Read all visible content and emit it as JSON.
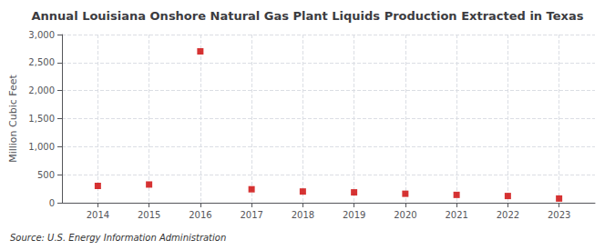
{
  "chart_data": {
    "type": "scatter",
    "title": "Annual Louisiana Onshore Natural Gas Plant Liquids Production Extracted in Texas",
    "ylabel": "Million Cubic Feet",
    "annotation": "Source: U.S. Energy Information Administration",
    "x": [
      2014,
      2015,
      2016,
      2017,
      2018,
      2019,
      2020,
      2021,
      2022,
      2023
    ],
    "values": [
      300,
      325,
      2700,
      240,
      200,
      185,
      160,
      140,
      120,
      75
    ],
    "color": "#cc0000",
    "marker": "square",
    "xlim": [
      2013.3,
      2023.7
    ],
    "xticks": [
      2014,
      2015,
      2016,
      2017,
      2018,
      2019,
      2020,
      2021,
      2022,
      2023
    ],
    "ylim": [
      0,
      3000
    ],
    "yticks": [
      0,
      500,
      {
        "value": 1000,
        "label": "1,000"
      },
      {
        "value": 1500,
        "label": "1,500"
      },
      {
        "value": 2000,
        "label": "2,000"
      },
      {
        "value": 2500,
        "label": "2,500"
      },
      {
        "value": 3000,
        "label": "3,000"
      }
    ],
    "grid": true
  }
}
